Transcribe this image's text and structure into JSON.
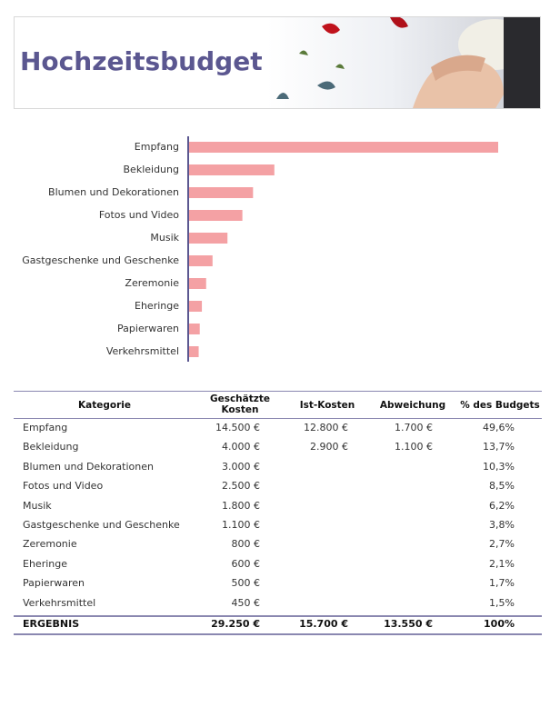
{
  "header": {
    "title": "Hochzeitsbudget"
  },
  "chart_data": {
    "type": "bar",
    "orientation": "horizontal",
    "categories": [
      "Empfang",
      "Bekleidung",
      "Blumen und Dekorationen",
      "Fotos und Video",
      "Musik",
      "Gastgeschenke und Geschenke",
      "Zeremonie",
      "Eheringe",
      "Papierwaren",
      "Verkehrsmittel"
    ],
    "values": [
      14500,
      4000,
      3000,
      2500,
      1800,
      1100,
      800,
      600,
      500,
      450
    ],
    "color": "#f4a1a4",
    "xlim": [
      0,
      14500
    ]
  },
  "table": {
    "columns": [
      "Kategorie",
      "Geschätzte Kosten",
      "Ist-Kosten",
      "Abweichung",
      "% des Budgets"
    ],
    "rows": [
      {
        "category": "Empfang",
        "estimated": "14.500 €",
        "actual": "12.800 €",
        "variance": "1.700 €",
        "percent": "49,6%"
      },
      {
        "category": "Bekleidung",
        "estimated": "4.000 €",
        "actual": "2.900 €",
        "variance": "1.100 €",
        "percent": "13,7%"
      },
      {
        "category": "Blumen und Dekorationen",
        "estimated": "3.000 €",
        "percent": "10,3%"
      },
      {
        "category": "Fotos und Video",
        "estimated": "2.500 €",
        "percent": "8,5%"
      },
      {
        "category": "Musik",
        "estimated": "1.800 €",
        "percent": "6,2%"
      },
      {
        "category": "Gastgeschenke und Geschenke",
        "estimated": "1.100 €",
        "percent": "3,8%"
      },
      {
        "category": "Zeremonie",
        "estimated": "800 €",
        "percent": "2,7%"
      },
      {
        "category": "Eheringe",
        "estimated": "600 €",
        "percent": "2,1%"
      },
      {
        "category": "Papierwaren",
        "estimated": "500 €",
        "percent": "1,7%"
      },
      {
        "category": "Verkehrsmittel",
        "estimated": "450 €",
        "percent": "1,5%"
      }
    ],
    "total": {
      "category": "ERGEBNIS",
      "estimated": "29.250 €",
      "actual": "15.700 €",
      "variance": "13.550 €",
      "percent": "100%"
    }
  }
}
